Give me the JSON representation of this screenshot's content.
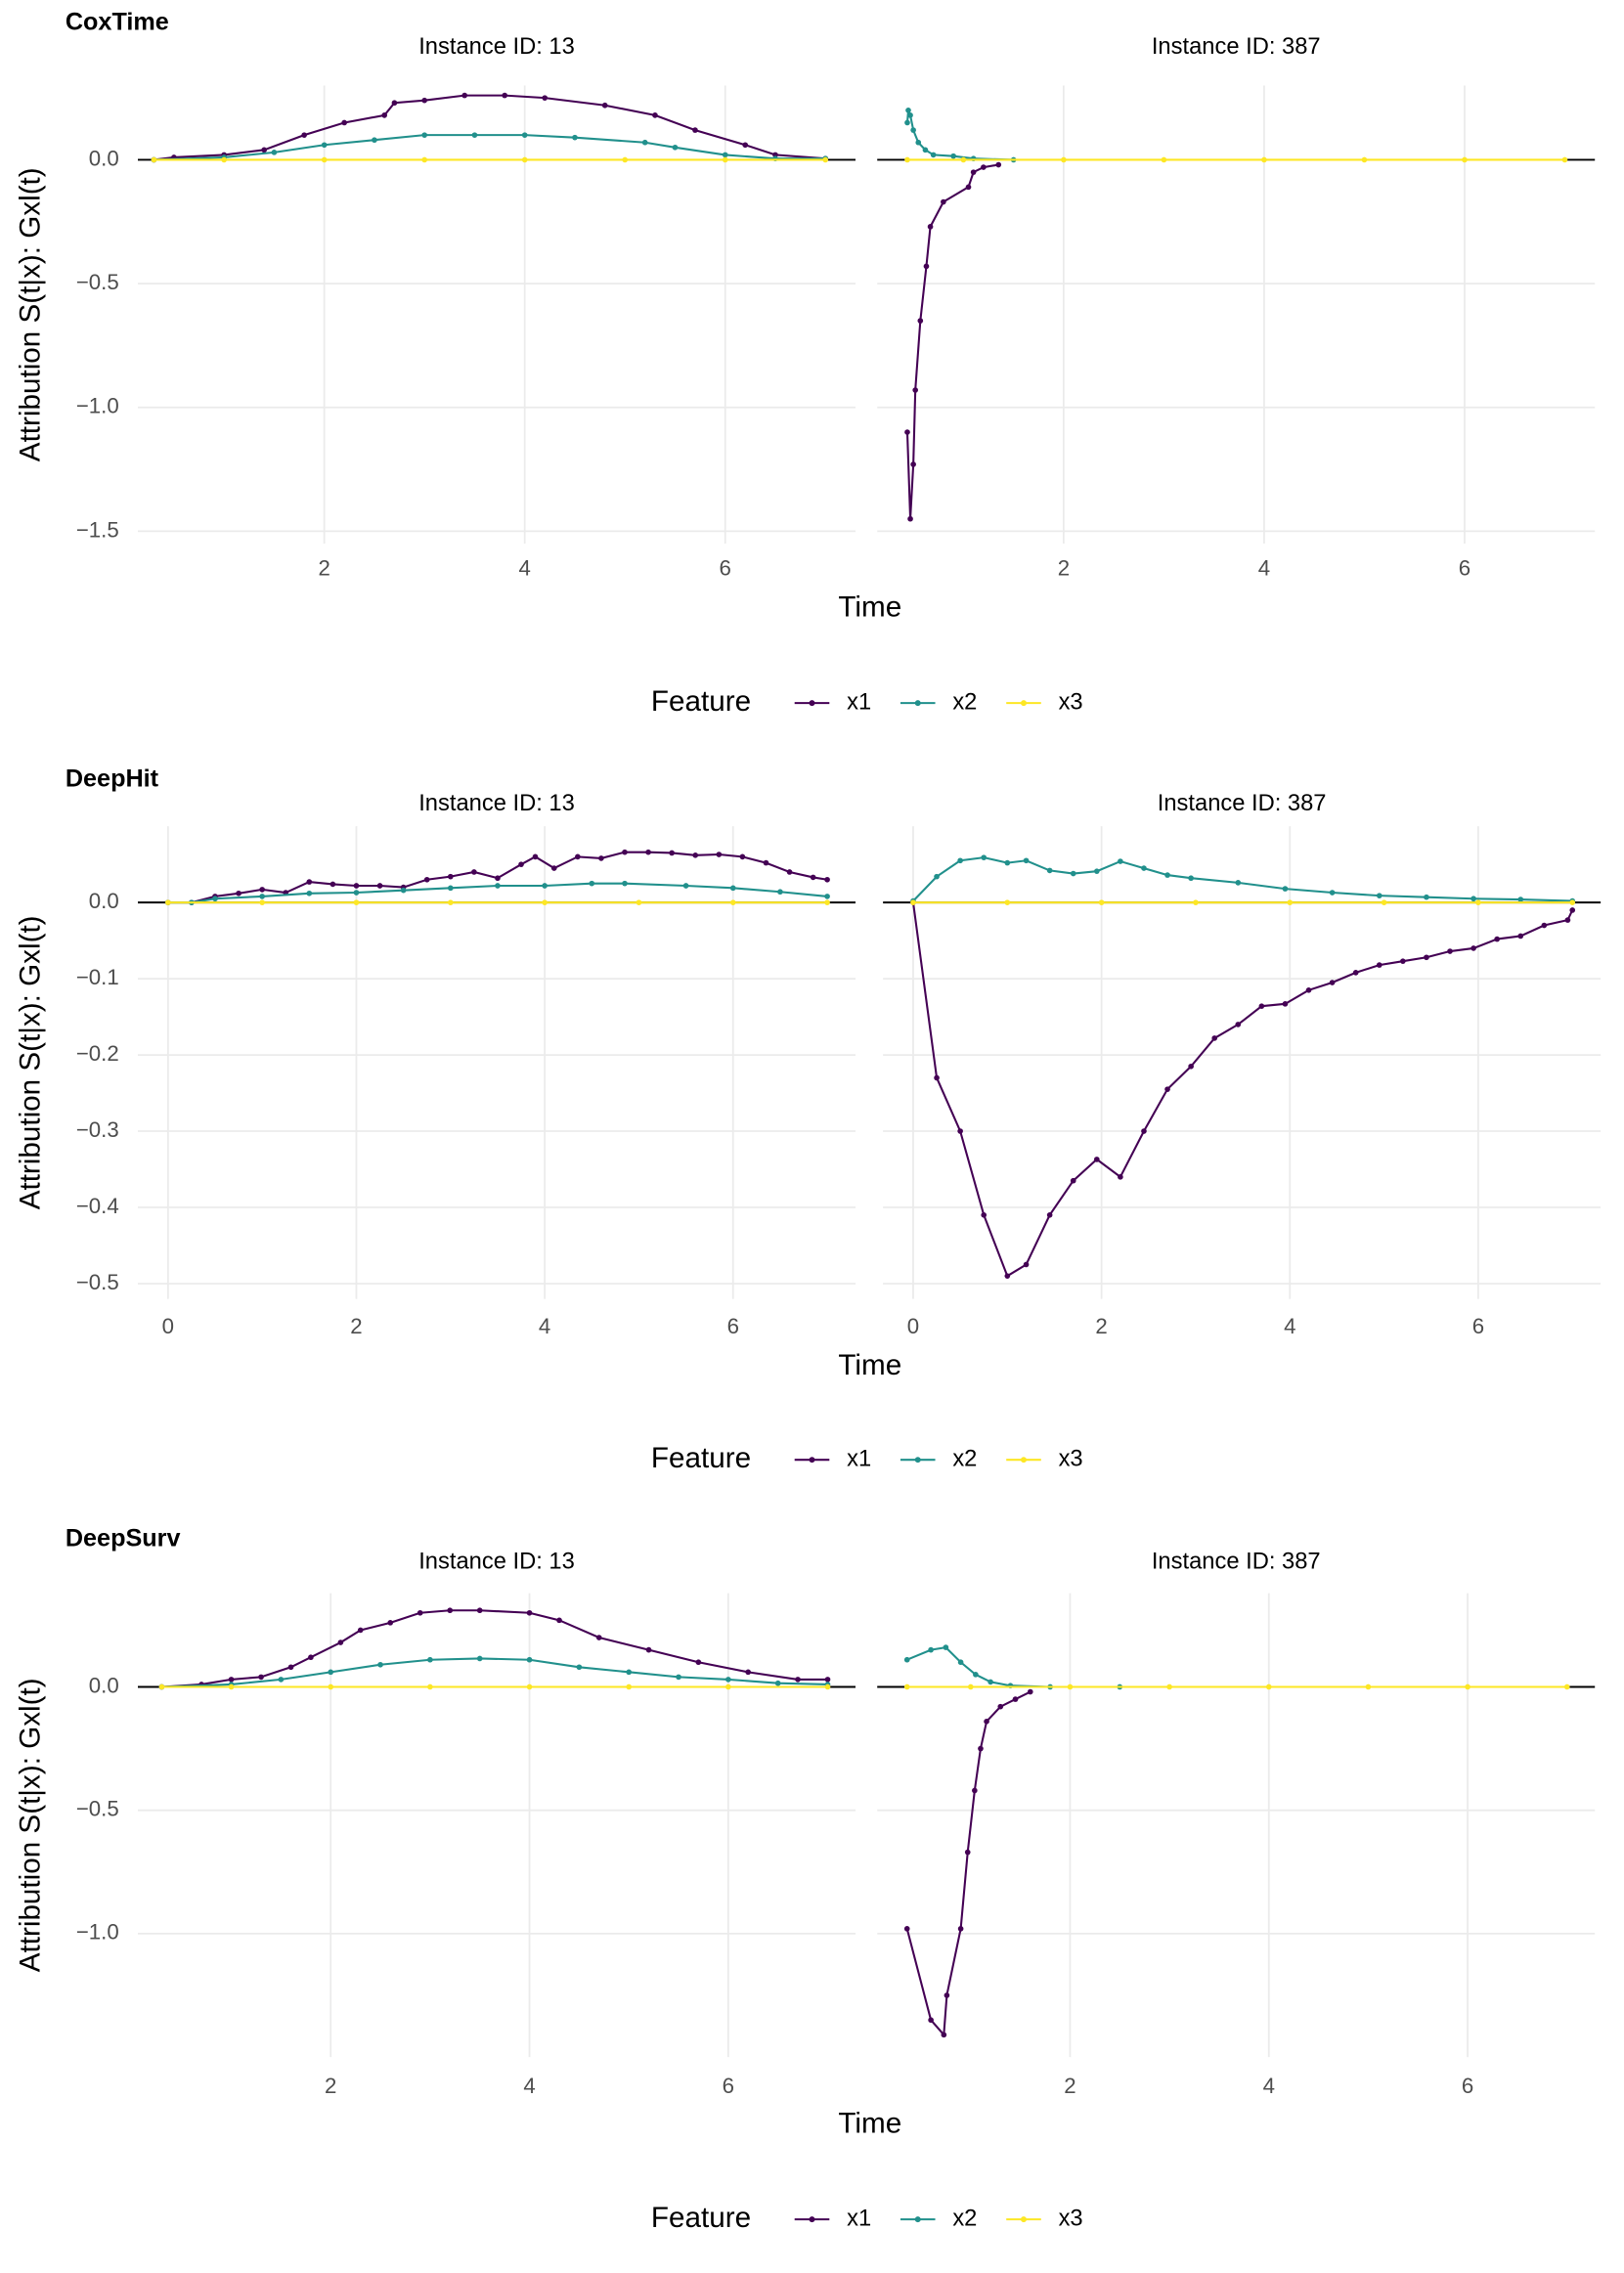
{
  "chart_data": [
    {
      "type": "line",
      "title": "CoxTime",
      "x_label": "Time",
      "y_label": "Attribution S(t|x): Gxl(t)",
      "legend_title": "Feature",
      "series": [
        {
          "name": "x1",
          "color": "#440154"
        },
        {
          "name": "x2",
          "color": "#21908c"
        },
        {
          "name": "x3",
          "color": "#fde725"
        }
      ],
      "xlim": [
        0.14,
        7.3
      ],
      "xticks": [
        2,
        4,
        6
      ],
      "ylim": [
        -1.55,
        0.3
      ],
      "yticks": [
        {
          "value": 0,
          "label": "0.0"
        },
        {
          "value": -0.5,
          "label": "−0.5"
        },
        {
          "value": -1,
          "label": "−1.0"
        },
        {
          "value": -1.5,
          "label": "−1.5"
        }
      ],
      "grid": true,
      "panels": [
        {
          "subtitle": "Instance ID: 13",
          "data": [
            {
              "x": [
                0.3,
                0.5,
                1,
                1.4,
                1.8,
                2.2,
                2.6,
                2.7,
                3,
                3.4,
                3.8,
                4.2,
                4.8,
                5.3,
                5.7,
                6.2,
                6.5,
                7
              ],
              "values": [
                0,
                0.01,
                0.02,
                0.04,
                0.1,
                0.15,
                0.18,
                0.23,
                0.24,
                0.26,
                0.26,
                0.25,
                0.22,
                0.18,
                0.12,
                0.06,
                0.02,
                0.005
              ]
            },
            {
              "x": [
                0.3,
                1,
                1.5,
                2,
                2.5,
                3,
                3.5,
                4,
                4.5,
                5.2,
                5.5,
                6,
                6.5,
                7
              ],
              "values": [
                0,
                0.01,
                0.03,
                0.06,
                0.08,
                0.1,
                0.1,
                0.1,
                0.09,
                0.07,
                0.05,
                0.02,
                0.005,
                0.005
              ]
            },
            {
              "x": [
                0.3,
                1,
                2,
                3,
                4,
                5,
                6,
                7
              ],
              "values": [
                0,
                0,
                0,
                0,
                0,
                0,
                0,
                0
              ]
            }
          ]
        },
        {
          "subtitle": "Instance ID: 387",
          "data": [
            {
              "x": [
                0.44,
                0.47,
                0.5,
                0.52,
                0.57,
                0.63,
                0.67,
                0.8,
                1.05,
                1.1,
                1.2,
                1.35
              ],
              "values": [
                -1.1,
                -1.45,
                -1.23,
                -0.93,
                -0.65,
                -0.43,
                -0.27,
                -0.17,
                -0.11,
                -0.05,
                -0.03,
                -0.02
              ]
            },
            {
              "x": [
                0.44,
                0.45,
                0.47,
                0.5,
                0.55,
                0.62,
                0.7,
                0.9,
                1.1,
                1.5
              ],
              "values": [
                0.15,
                0.2,
                0.18,
                0.12,
                0.07,
                0.04,
                0.02,
                0.015,
                0.005,
                0
              ]
            },
            {
              "x": [
                0.44,
                1,
                2,
                3,
                4,
                5,
                6,
                7
              ],
              "values": [
                0,
                0,
                0,
                0,
                0,
                0,
                0,
                0
              ]
            }
          ]
        }
      ]
    },
    {
      "type": "line",
      "title": "DeepHit",
      "x_label": "Time",
      "y_label": "Attribution S(t|x): Gxl(t)",
      "legend_title": "Feature",
      "series": [
        {
          "name": "x1",
          "color": "#440154"
        },
        {
          "name": "x2",
          "color": "#21908c"
        },
        {
          "name": "x3",
          "color": "#fde725"
        }
      ],
      "xlim": [
        -0.32,
        7.3
      ],
      "xticks": [
        0,
        2,
        4,
        6
      ],
      "ylim": [
        -0.52,
        0.1
      ],
      "yticks": [
        {
          "value": 0,
          "label": "0.0"
        },
        {
          "value": -0.1,
          "label": "−0.1"
        },
        {
          "value": -0.2,
          "label": "−0.2"
        },
        {
          "value": -0.3,
          "label": "−0.3"
        },
        {
          "value": -0.4,
          "label": "−0.4"
        },
        {
          "value": -0.5,
          "label": "−0.5"
        }
      ],
      "grid": true,
      "panels": [
        {
          "subtitle": "Instance ID: 13",
          "data": [
            {
              "x": [
                0,
                0.25,
                0.5,
                0.75,
                1,
                1.25,
                1.5,
                1.75,
                2,
                2.25,
                2.5,
                2.75,
                3,
                3.25,
                3.5,
                3.75,
                3.9,
                4.1,
                4.35,
                4.6,
                4.85,
                5.1,
                5.35,
                5.6,
                5.85,
                6.1,
                6.35,
                6.6,
                6.85,
                7
              ],
              "values": [
                0,
                0,
                0.008,
                0.012,
                0.017,
                0.013,
                0.027,
                0.024,
                0.022,
                0.022,
                0.02,
                0.03,
                0.034,
                0.04,
                0.032,
                0.05,
                0.06,
                0.045,
                0.06,
                0.058,
                0.066,
                0.066,
                0.065,
                0.062,
                0.063,
                0.06,
                0.052,
                0.04,
                0.033,
                0.03
              ]
            },
            {
              "x": [
                0,
                0.25,
                0.5,
                1,
                1.5,
                2,
                2.5,
                3,
                3.5,
                4,
                4.5,
                4.85,
                5.5,
                6,
                6.5,
                7
              ],
              "values": [
                0,
                0,
                0.005,
                0.008,
                0.012,
                0.013,
                0.016,
                0.019,
                0.022,
                0.022,
                0.025,
                0.025,
                0.022,
                0.019,
                0.014,
                0.008
              ]
            },
            {
              "x": [
                0,
                1,
                2,
                3,
                4,
                5,
                6,
                7
              ],
              "values": [
                0,
                0,
                0,
                0,
                0,
                0,
                0,
                0
              ]
            }
          ]
        },
        {
          "subtitle": "Instance ID: 387",
          "data": [
            {
              "x": [
                0,
                0.25,
                0.5,
                0.75,
                1,
                1.2,
                1.45,
                1.7,
                1.95,
                2.2,
                2.45,
                2.7,
                2.95,
                3.2,
                3.45,
                3.7,
                3.95,
                4.2,
                4.45,
                4.7,
                4.95,
                5.2,
                5.45,
                5.7,
                5.95,
                6.2,
                6.45,
                6.7,
                6.95,
                7
              ],
              "values": [
                0,
                -0.23,
                -0.3,
                -0.41,
                -0.49,
                -0.475,
                -0.41,
                -0.365,
                -0.337,
                -0.36,
                -0.3,
                -0.245,
                -0.215,
                -0.178,
                -0.16,
                -0.136,
                -0.133,
                -0.115,
                -0.105,
                -0.092,
                -0.082,
                -0.077,
                -0.072,
                -0.064,
                -0.06,
                -0.048,
                -0.044,
                -0.03,
                -0.023,
                -0.01
              ]
            },
            {
              "x": [
                0,
                0.25,
                0.5,
                0.75,
                1,
                1.2,
                1.45,
                1.7,
                1.95,
                2.2,
                2.45,
                2.7,
                2.95,
                3.45,
                3.95,
                4.45,
                4.95,
                5.45,
                5.95,
                6.45,
                7
              ],
              "values": [
                0.002,
                0.034,
                0.055,
                0.059,
                0.052,
                0.055,
                0.042,
                0.038,
                0.041,
                0.054,
                0.045,
                0.036,
                0.032,
                0.026,
                0.018,
                0.013,
                0.009,
                0.007,
                0.005,
                0.004,
                0.002
              ]
            },
            {
              "x": [
                0,
                1,
                2,
                3,
                4,
                5,
                6,
                7
              ],
              "values": [
                0,
                0,
                0,
                0,
                0,
                0,
                0,
                0
              ]
            }
          ]
        }
      ]
    },
    {
      "type": "line",
      "title": "DeepSurv",
      "x_label": "Time",
      "y_label": "Attribution S(t|x): Gxl(t)",
      "legend_title": "Feature",
      "series": [
        {
          "name": "x1",
          "color": "#440154"
        },
        {
          "name": "x2",
          "color": "#21908c"
        },
        {
          "name": "x3",
          "color": "#fde725"
        }
      ],
      "xlim": [
        0.06,
        7.28
      ],
      "xticks": [
        2,
        4,
        6
      ],
      "ylim": [
        -1.5,
        0.38
      ],
      "yticks": [
        {
          "value": 0,
          "label": "0.0"
        },
        {
          "value": -0.5,
          "label": "−0.5"
        },
        {
          "value": -1,
          "label": "−1.0"
        }
      ],
      "grid": true,
      "panels": [
        {
          "subtitle": "Instance ID: 13",
          "data": [
            {
              "x": [
                0.3,
                0.7,
                1,
                1.3,
                1.6,
                1.8,
                2.1,
                2.3,
                2.6,
                2.9,
                3.2,
                3.5,
                4,
                4.3,
                4.7,
                5.2,
                5.7,
                6.2,
                6.7,
                7
              ],
              "values": [
                0,
                0.01,
                0.03,
                0.04,
                0.08,
                0.12,
                0.18,
                0.23,
                0.26,
                0.3,
                0.31,
                0.31,
                0.3,
                0.27,
                0.2,
                0.15,
                0.1,
                0.06,
                0.03,
                0.03
              ]
            },
            {
              "x": [
                0.3,
                1,
                1.5,
                2,
                2.5,
                3,
                3.5,
                4,
                4.5,
                5,
                5.5,
                6,
                6.5,
                7
              ],
              "values": [
                0,
                0.01,
                0.03,
                0.06,
                0.09,
                0.11,
                0.115,
                0.11,
                0.08,
                0.06,
                0.04,
                0.03,
                0.015,
                0.01
              ]
            },
            {
              "x": [
                0.3,
                1,
                2,
                3,
                4,
                5,
                6,
                7
              ],
              "values": [
                0,
                0,
                0,
                0,
                0,
                0,
                0,
                0
              ]
            }
          ]
        },
        {
          "subtitle": "Instance ID: 387",
          "data": [
            {
              "x": [
                0.36,
                0.6,
                0.73,
                0.76,
                0.9,
                0.97,
                1.04,
                1.1,
                1.16,
                1.3,
                1.45,
                1.6
              ],
              "values": [
                -0.98,
                -1.35,
                -1.41,
                -1.25,
                -0.98,
                -0.67,
                -0.42,
                -0.25,
                -0.14,
                -0.08,
                -0.05,
                -0.02
              ]
            },
            {
              "x": [
                0.36,
                0.6,
                0.75,
                0.9,
                1.05,
                1.2,
                1.4,
                1.8,
                2.5
              ],
              "values": [
                0.11,
                0.15,
                0.16,
                0.1,
                0.05,
                0.02,
                0.005,
                0,
                0
              ]
            },
            {
              "x": [
                0.36,
                1,
                2,
                3,
                4,
                5,
                6,
                7
              ],
              "values": [
                0,
                0,
                0,
                0,
                0,
                0,
                0,
                0
              ]
            }
          ]
        }
      ]
    }
  ]
}
